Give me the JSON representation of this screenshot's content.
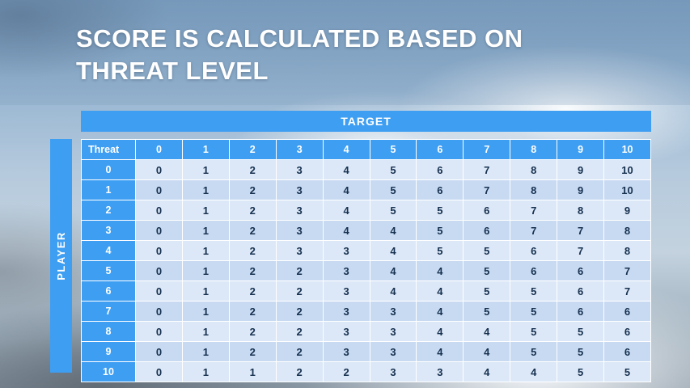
{
  "slide": {
    "title_lines": [
      "SCORE IS CALCULATED BASED ON",
      "THREAT LEVEL"
    ]
  },
  "score_table": {
    "target_label": "TARGET",
    "player_label": "PLAYER",
    "corner_label": "Threat",
    "column_headers": [
      "0",
      "1",
      "2",
      "3",
      "4",
      "5",
      "6",
      "7",
      "8",
      "9",
      "10"
    ],
    "rows": [
      {
        "header": "0",
        "values": [
          "0",
          "1",
          "2",
          "3",
          "4",
          "5",
          "6",
          "7",
          "8",
          "9",
          "10"
        ]
      },
      {
        "header": "1",
        "values": [
          "0",
          "1",
          "2",
          "3",
          "4",
          "5",
          "6",
          "7",
          "8",
          "9",
          "10"
        ]
      },
      {
        "header": "2",
        "values": [
          "0",
          "1",
          "2",
          "3",
          "4",
          "5",
          "5",
          "6",
          "7",
          "8",
          "9"
        ]
      },
      {
        "header": "3",
        "values": [
          "0",
          "1",
          "2",
          "3",
          "4",
          "4",
          "5",
          "6",
          "7",
          "7",
          "8"
        ]
      },
      {
        "header": "4",
        "values": [
          "0",
          "1",
          "2",
          "3",
          "3",
          "4",
          "5",
          "5",
          "6",
          "7",
          "8"
        ]
      },
      {
        "header": "5",
        "values": [
          "0",
          "1",
          "2",
          "2",
          "3",
          "4",
          "4",
          "5",
          "6",
          "6",
          "7"
        ]
      },
      {
        "header": "6",
        "values": [
          "0",
          "1",
          "2",
          "2",
          "3",
          "4",
          "4",
          "5",
          "5",
          "6",
          "7"
        ]
      },
      {
        "header": "7",
        "values": [
          "0",
          "1",
          "2",
          "2",
          "3",
          "3",
          "4",
          "5",
          "5",
          "6",
          "6"
        ]
      },
      {
        "header": "8",
        "values": [
          "0",
          "1",
          "2",
          "2",
          "3",
          "3",
          "4",
          "4",
          "5",
          "5",
          "6"
        ]
      },
      {
        "header": "9",
        "values": [
          "0",
          "1",
          "2",
          "2",
          "3",
          "3",
          "4",
          "4",
          "5",
          "5",
          "6"
        ]
      },
      {
        "header": "10",
        "values": [
          "0",
          "1",
          "1",
          "2",
          "2",
          "3",
          "3",
          "4",
          "4",
          "5",
          "5"
        ]
      }
    ]
  },
  "colors": {
    "accent_blue": "#3E9EF2",
    "row_band_light": "#DCE8F7",
    "row_band_dark": "#C7DAF2",
    "cell_text": "#16304F",
    "title_text": "#FFFFFF"
  }
}
